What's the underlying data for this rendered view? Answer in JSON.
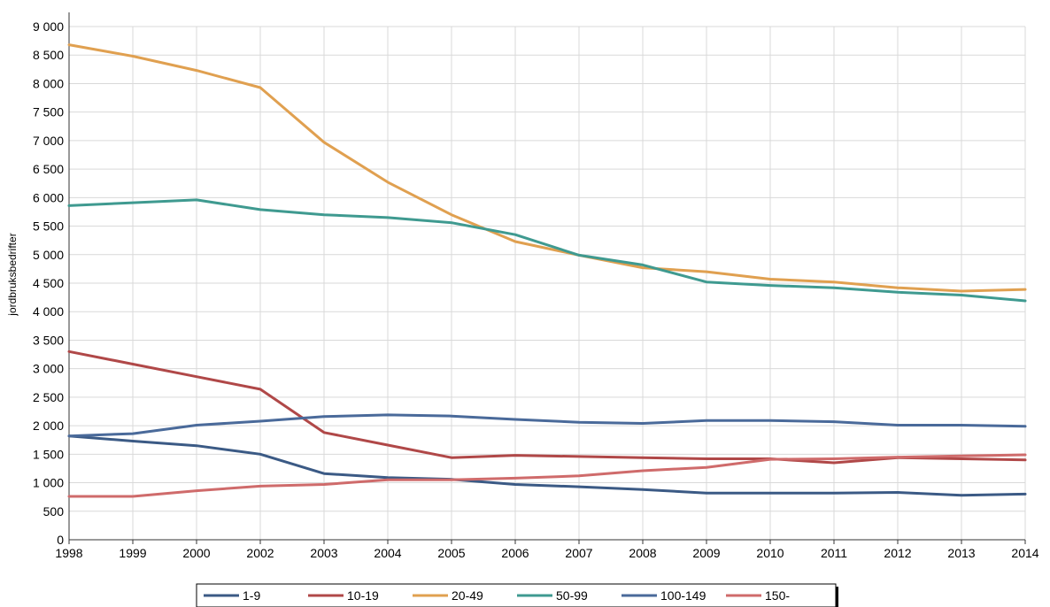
{
  "chart_data": {
    "type": "line",
    "title": "",
    "xlabel": "",
    "ylabel": "jordbruksbedrifter",
    "x": [
      "1998",
      "1999",
      "2000",
      "2002",
      "2003",
      "2004",
      "2005",
      "2006",
      "2007",
      "2008",
      "2009",
      "2010",
      "2011",
      "2012",
      "2013",
      "2014"
    ],
    "ylim": [
      0,
      9000
    ],
    "yticks": [
      0,
      500,
      1000,
      1500,
      2000,
      2500,
      3000,
      3500,
      4000,
      4500,
      5000,
      5500,
      6000,
      6500,
      7000,
      7500,
      8000,
      8500,
      9000
    ],
    "ytick_labels": [
      "0",
      "500",
      "1 000",
      "1 500",
      "2 000",
      "2 500",
      "3 000",
      "3 500",
      "4 000",
      "4 500",
      "5 000",
      "5 500",
      "6 000",
      "6 500",
      "7 000",
      "7 500",
      "8 000",
      "8 500",
      "9 000"
    ],
    "grid": true,
    "legend_position": "bottom",
    "series": [
      {
        "name": "1-9",
        "color": "#3b5a85",
        "values": [
          1820,
          1730,
          1650,
          1500,
          1160,
          1090,
          1060,
          970,
          930,
          880,
          820,
          820,
          820,
          830,
          780,
          800
        ]
      },
      {
        "name": "10-19",
        "color": "#b04848",
        "values": [
          3300,
          3080,
          2860,
          2640,
          1880,
          1660,
          1440,
          1480,
          1460,
          1440,
          1420,
          1420,
          1350,
          1440,
          1420,
          1400
        ]
      },
      {
        "name": "20-49",
        "color": "#e0a050",
        "values": [
          8680,
          8480,
          8230,
          7930,
          6970,
          6270,
          5700,
          5230,
          4990,
          4770,
          4700,
          4570,
          4520,
          4420,
          4360,
          4390
        ]
      },
      {
        "name": "50-99",
        "color": "#3f9a90",
        "values": [
          5860,
          5910,
          5960,
          5790,
          5700,
          5650,
          5560,
          5350,
          4990,
          4820,
          4520,
          4460,
          4420,
          4340,
          4290,
          4190
        ]
      },
      {
        "name": "100-149",
        "color": "#4a6a9a",
        "values": [
          1820,
          1860,
          2010,
          2080,
          2160,
          2190,
          2170,
          2110,
          2060,
          2040,
          2090,
          2090,
          2070,
          2010,
          2010,
          1990
        ]
      },
      {
        "name": "150-",
        "color": "#cf6b6b",
        "values": [
          760,
          760,
          860,
          940,
          970,
          1050,
          1050,
          1080,
          1120,
          1210,
          1270,
          1410,
          1420,
          1450,
          1470,
          1490
        ]
      }
    ]
  }
}
